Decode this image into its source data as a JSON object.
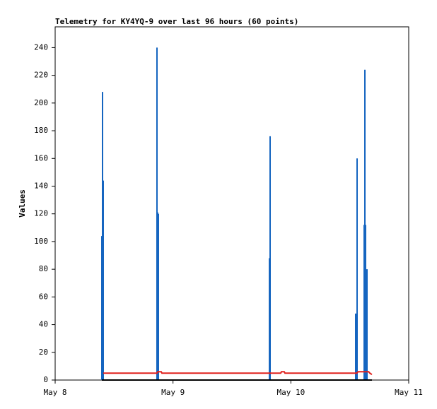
{
  "chart_data": {
    "type": "line",
    "title": "Telemetry for KY4YQ-9 over last 96 hours (60 points)",
    "y_label": "Values",
    "xlim": [
      0,
      3
    ],
    "xticks": [
      {
        "value": 0,
        "label": "May 8"
      },
      {
        "value": 1,
        "label": "May 9"
      },
      {
        "value": 2,
        "label": "May 10"
      },
      {
        "value": 3,
        "label": "May 11"
      }
    ],
    "ylim": [
      0,
      255
    ],
    "yticks": [
      0,
      20,
      40,
      60,
      80,
      100,
      120,
      140,
      160,
      180,
      200,
      220,
      240
    ],
    "series": [
      {
        "style": "impulses",
        "color": "#1565c0",
        "x": [
          0.396,
          0.402,
          0.408,
          0.864,
          0.87,
          0.876,
          1.818,
          1.824,
          2.55,
          2.562,
          2.622,
          2.628,
          2.634,
          2.646
        ],
        "values": [
          104,
          208,
          144,
          240,
          121,
          120,
          88,
          176,
          48,
          160,
          112,
          224,
          112,
          80
        ]
      },
      {
        "style": "lines",
        "color": "#e0201c",
        "x": [
          0.408,
          0.864,
          0.87,
          0.9,
          0.906,
          1.914,
          1.92,
          1.944,
          1.95,
          2.56,
          2.57,
          2.66,
          2.67,
          2.688
        ],
        "values": [
          5,
          5,
          6,
          6,
          5,
          5,
          6,
          6,
          5,
          5,
          6,
          6,
          5,
          4
        ]
      },
      {
        "style": "lines",
        "color": "#000000",
        "x": [
          0.396,
          2.688
        ],
        "values": [
          0,
          0
        ]
      }
    ]
  }
}
